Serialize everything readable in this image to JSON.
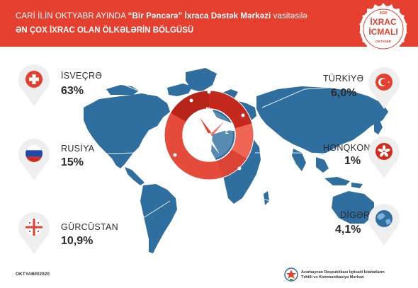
{
  "header": {
    "line1_a": "CARİ İLİN OKTYABR AYINDA ",
    "line1_b": "“Bir Pəncərə” İxraca Dəstək Mərkəzi",
    "line1_c": " vasitəsilə",
    "line2": "ƏN ÇOX İXRAC OLAN ÖLKƏLƏRİN BÖLGÜSÜ"
  },
  "badge": {
    "year": "2020",
    "word1": "İXRAC",
    "word2": "İCMALI",
    "month": "OKTYABR"
  },
  "compass": {
    "n": "N",
    "w": "W",
    "e": "E"
  },
  "countries": [
    {
      "name": "İSVEÇRƏ",
      "percent": "63%",
      "flag": "switzerland-flag"
    },
    {
      "name": "RUSİYA",
      "percent": "15%",
      "flag": "russia-flag"
    },
    {
      "name": "GÜRCÜSTAN",
      "percent": "10,9%",
      "flag": "georgia-flag"
    },
    {
      "name": "TÜRKİYƏ",
      "percent": "6,0%",
      "flag": "turkey-flag"
    },
    {
      "name": "HONQKONQ",
      "percent": "1%",
      "flag": "hongkong-flag"
    },
    {
      "name": "DİGƏR",
      "percent": "4,1%",
      "flag": "globe-icon"
    }
  ],
  "colors": {
    "accent": "#e5402f",
    "map": "#2f6f9f",
    "pin": "#efefef"
  },
  "footer": {
    "date": "OKTYABR/2020",
    "org_line1": "Azərbaycan Respublikası İqtisadi İslahatların",
    "org_line2": "Təhlili və Kommunikasiya Mərkəzi"
  }
}
